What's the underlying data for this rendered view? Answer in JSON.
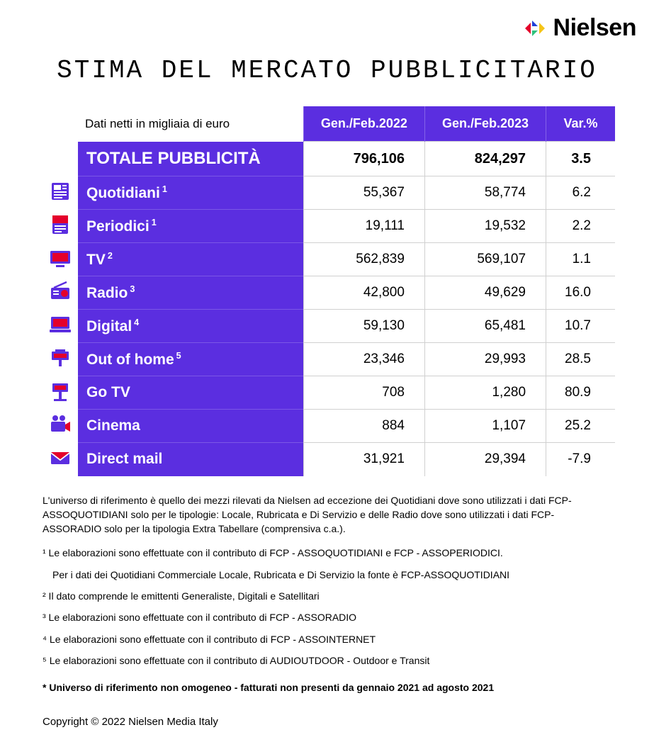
{
  "brand": {
    "name": "Nielsen"
  },
  "title": "STIMA DEL MERCATO PUBBLICITARIO",
  "subtitle": "Dati netti in migliaia di euro",
  "colors": {
    "brand_purple": "#5b2ee0",
    "brand_red": "#e4002b",
    "brand_blue": "#1f3fd8",
    "brand_green": "#2ec27e",
    "brand_yellow": "#f5c518",
    "text": "#000000",
    "white": "#ffffff",
    "grid": "#d0d0d0"
  },
  "columns": [
    {
      "key": "c2022",
      "label": "Gen./Feb.2022"
    },
    {
      "key": "c2023",
      "label": "Gen./Feb.2023"
    },
    {
      "key": "var",
      "label": "Var.%"
    }
  ],
  "rows": [
    {
      "icon": null,
      "label": "TOTALE PUBBLICITÀ",
      "sup": "",
      "c2022": "796,106",
      "c2023": "824,297",
      "var": "3.5",
      "total": true
    },
    {
      "icon": "newspaper",
      "label": "Quotidiani",
      "sup": "1",
      "c2022": "55,367",
      "c2023": "58,774",
      "var": "6.2"
    },
    {
      "icon": "magazine",
      "label": "Periodici",
      "sup": "1",
      "c2022": "19,111",
      "c2023": "19,532",
      "var": "2.2"
    },
    {
      "icon": "tv",
      "label": "TV",
      "sup": "2",
      "c2022": "562,839",
      "c2023": "569,107",
      "var": "1.1"
    },
    {
      "icon": "radio",
      "label": "Radio",
      "sup": "3",
      "c2022": "42,800",
      "c2023": "49,629",
      "var": "16.0"
    },
    {
      "icon": "digital",
      "label": "Digital",
      "sup": "4",
      "c2022": "59,130",
      "c2023": "65,481",
      "var": "10.7"
    },
    {
      "icon": "ooh",
      "label": "Out of home",
      "sup": "5",
      "c2022": "23,346",
      "c2023": "29,993",
      "var": "28.5"
    },
    {
      "icon": "gotv",
      "label": "Go TV",
      "sup": "",
      "c2022": "708",
      "c2023": "1,280",
      "var": "80.9"
    },
    {
      "icon": "cinema",
      "label": "Cinema",
      "sup": "",
      "c2022": "884",
      "c2023": "1,107",
      "var": "25.2"
    },
    {
      "icon": "mail",
      "label": "Direct mail",
      "sup": "",
      "c2022": "31,921",
      "c2023": "29,394",
      "var": "-7.9"
    }
  ],
  "notes": {
    "intro": "L'universo di riferimento è quello dei mezzi rilevati da Nielsen ad eccezione dei Quotidiani dove sono utilizzati i dati FCP-ASSOQUOTIDIANI solo per le tipologie: Locale, Rubricata e Di Servizio e delle Radio dove sono utilizzati i dati FCP-ASSORADIO solo per la tipologia Extra Tabellare (comprensiva c.a.).",
    "fn1a": "¹  Le elaborazioni sono effettuate con il contributo di FCP - ASSOQUOTIDIANI e FCP - ASSOPERIODICI.",
    "fn1b": "Per i dati dei Quotidiani Commerciale Locale, Rubricata e Di Servizio la fonte è  FCP-ASSOQUOTIDIANI",
    "fn2": "²  Il dato comprende le emittenti Generaliste, Digitali e Satellitari",
    "fn3": "³  Le elaborazioni sono effettuate con il contributo di FCP - ASSORADIO",
    "fn4": "⁴  Le elaborazioni sono effettuate con il contributo di FCP - ASSOINTERNET",
    "fn5": "⁵  Le elaborazioni sono effettuate con il contributo di AUDIOUTDOOR - Outdoor e Transit",
    "disclaimer": "* Universo di riferimento non omogeneo - fatturati non presenti da gennaio 2021 ad agosto 2021"
  },
  "copyright": "Copyright © 2022 Nielsen Media Italy"
}
